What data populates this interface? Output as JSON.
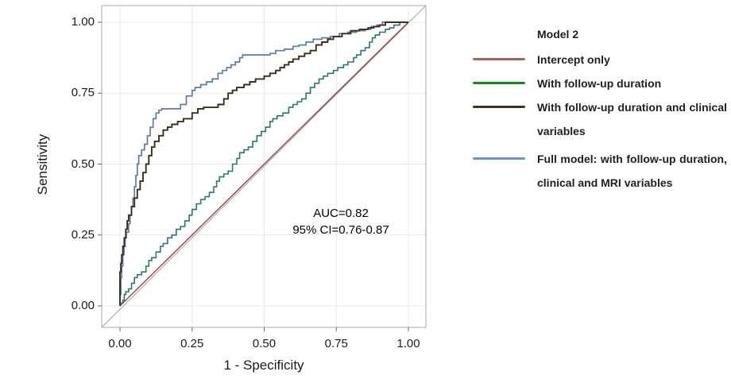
{
  "chart_data": {
    "type": "line",
    "subtype": "roc-curves",
    "title": "",
    "xlabel": "1 - Specificity",
    "ylabel": "Sensitivity",
    "xlim": [
      0,
      1
    ],
    "ylim": [
      0,
      1
    ],
    "grid": true,
    "xtick_labels": [
      "0.00",
      "0.25",
      "0.50",
      "0.75",
      "1.00"
    ],
    "ytick_labels": [
      "0.00",
      "0.25",
      "0.50",
      "0.75",
      "1.00"
    ],
    "annotation": {
      "line1": "AUC=0.82",
      "line2": "95% CI=0.76-0.87"
    },
    "diagonal_reference_color": "#9aa0a4",
    "frame_color": "#a8a8a8",
    "gridline_color": "#e9e9e9",
    "series": [
      {
        "id": "intercept-only",
        "name": "Intercept only",
        "color": "#9c3f38",
        "width": 1.4,
        "step": false,
        "points": [
          [
            0,
            0
          ],
          [
            1,
            1
          ]
        ]
      },
      {
        "id": "followup-duration",
        "name": "With follow-up duration",
        "color": "#27786f",
        "width": 1.6,
        "step": true,
        "points": [
          [
            0,
            0
          ],
          [
            0.01,
            0.01
          ],
          [
            0.015,
            0.02
          ],
          [
            0.02,
            0.04
          ],
          [
            0.03,
            0.05
          ],
          [
            0.04,
            0.06
          ],
          [
            0.05,
            0.08
          ],
          [
            0.06,
            0.1
          ],
          [
            0.075,
            0.11
          ],
          [
            0.09,
            0.12
          ],
          [
            0.1,
            0.14
          ],
          [
            0.11,
            0.16
          ],
          [
            0.125,
            0.17
          ],
          [
            0.14,
            0.19
          ],
          [
            0.15,
            0.21
          ],
          [
            0.165,
            0.22
          ],
          [
            0.18,
            0.24
          ],
          [
            0.195,
            0.25
          ],
          [
            0.21,
            0.27
          ],
          [
            0.225,
            0.28
          ],
          [
            0.24,
            0.3
          ],
          [
            0.25,
            0.32
          ],
          [
            0.265,
            0.34
          ],
          [
            0.28,
            0.36
          ],
          [
            0.295,
            0.375
          ],
          [
            0.31,
            0.385
          ],
          [
            0.325,
            0.4
          ],
          [
            0.335,
            0.42
          ],
          [
            0.345,
            0.44
          ],
          [
            0.36,
            0.455
          ],
          [
            0.375,
            0.465
          ],
          [
            0.39,
            0.475
          ],
          [
            0.405,
            0.5
          ],
          [
            0.415,
            0.52
          ],
          [
            0.43,
            0.54
          ],
          [
            0.445,
            0.55
          ],
          [
            0.46,
            0.56
          ],
          [
            0.475,
            0.58
          ],
          [
            0.49,
            0.6
          ],
          [
            0.505,
            0.615
          ],
          [
            0.52,
            0.63
          ],
          [
            0.53,
            0.65
          ],
          [
            0.545,
            0.66
          ],
          [
            0.565,
            0.67
          ],
          [
            0.585,
            0.68
          ],
          [
            0.6,
            0.7
          ],
          [
            0.615,
            0.71
          ],
          [
            0.63,
            0.72
          ],
          [
            0.645,
            0.73
          ],
          [
            0.66,
            0.75
          ],
          [
            0.675,
            0.77
          ],
          [
            0.69,
            0.785
          ],
          [
            0.705,
            0.8
          ],
          [
            0.72,
            0.81
          ],
          [
            0.74,
            0.82
          ],
          [
            0.755,
            0.83
          ],
          [
            0.775,
            0.84
          ],
          [
            0.79,
            0.85
          ],
          [
            0.81,
            0.86
          ],
          [
            0.82,
            0.875
          ],
          [
            0.835,
            0.885
          ],
          [
            0.85,
            0.9
          ],
          [
            0.865,
            0.91
          ],
          [
            0.875,
            0.93
          ],
          [
            0.885,
            0.945
          ],
          [
            0.9,
            0.955
          ],
          [
            0.92,
            0.965
          ],
          [
            0.935,
            0.975
          ],
          [
            0.95,
            0.98
          ],
          [
            0.97,
            0.99
          ],
          [
            1,
            1
          ]
        ]
      },
      {
        "id": "full-model",
        "name": "Full model: with follow-up duration, clinical and MRI variables",
        "color": "#5b7ab2",
        "width": 1.7,
        "step": true,
        "points": [
          [
            0,
            0
          ],
          [
            0.003,
            0.04
          ],
          [
            0.006,
            0.1
          ],
          [
            0.01,
            0.14
          ],
          [
            0.014,
            0.18
          ],
          [
            0.018,
            0.21
          ],
          [
            0.022,
            0.24
          ],
          [
            0.03,
            0.26
          ],
          [
            0.035,
            0.29
          ],
          [
            0.04,
            0.32
          ],
          [
            0.045,
            0.35
          ],
          [
            0.05,
            0.38
          ],
          [
            0.055,
            0.42
          ],
          [
            0.06,
            0.46
          ],
          [
            0.065,
            0.5
          ],
          [
            0.075,
            0.53
          ],
          [
            0.085,
            0.55
          ],
          [
            0.095,
            0.57
          ],
          [
            0.105,
            0.6
          ],
          [
            0.115,
            0.63
          ],
          [
            0.125,
            0.66
          ],
          [
            0.135,
            0.68
          ],
          [
            0.145,
            0.69
          ],
          [
            0.21,
            0.695
          ],
          [
            0.23,
            0.71
          ],
          [
            0.25,
            0.74
          ],
          [
            0.26,
            0.76
          ],
          [
            0.28,
            0.77
          ],
          [
            0.3,
            0.78
          ],
          [
            0.32,
            0.79
          ],
          [
            0.34,
            0.8
          ],
          [
            0.355,
            0.82
          ],
          [
            0.37,
            0.83
          ],
          [
            0.385,
            0.84
          ],
          [
            0.4,
            0.85
          ],
          [
            0.415,
            0.86
          ],
          [
            0.425,
            0.875
          ],
          [
            0.435,
            0.885
          ],
          [
            0.52,
            0.885
          ],
          [
            0.54,
            0.89
          ],
          [
            0.57,
            0.9
          ],
          [
            0.6,
            0.905
          ],
          [
            0.62,
            0.915
          ],
          [
            0.645,
            0.92
          ],
          [
            0.67,
            0.93
          ],
          [
            0.7,
            0.94
          ],
          [
            0.73,
            0.945
          ],
          [
            0.76,
            0.95
          ],
          [
            0.79,
            0.96
          ],
          [
            0.82,
            0.965
          ],
          [
            0.85,
            0.97
          ],
          [
            0.87,
            0.975
          ],
          [
            0.89,
            0.985
          ],
          [
            0.91,
            0.99
          ],
          [
            0.93,
            1.0
          ],
          [
            1,
            1
          ]
        ]
      },
      {
        "id": "clinical-variables",
        "name": "With follow-up duration and clinical variables",
        "color": "#3a2e1c",
        "width": 1.9,
        "step": true,
        "points": [
          [
            0,
            0
          ],
          [
            0.003,
            0.12
          ],
          [
            0.006,
            0.15
          ],
          [
            0.01,
            0.18
          ],
          [
            0.015,
            0.21
          ],
          [
            0.02,
            0.24
          ],
          [
            0.025,
            0.27
          ],
          [
            0.03,
            0.3
          ],
          [
            0.04,
            0.32
          ],
          [
            0.05,
            0.35
          ],
          [
            0.06,
            0.38
          ],
          [
            0.07,
            0.41
          ],
          [
            0.08,
            0.44
          ],
          [
            0.09,
            0.47
          ],
          [
            0.1,
            0.5
          ],
          [
            0.11,
            0.53
          ],
          [
            0.12,
            0.56
          ],
          [
            0.135,
            0.58
          ],
          [
            0.15,
            0.6
          ],
          [
            0.165,
            0.62
          ],
          [
            0.18,
            0.63
          ],
          [
            0.2,
            0.64
          ],
          [
            0.22,
            0.65
          ],
          [
            0.25,
            0.66
          ],
          [
            0.27,
            0.68
          ],
          [
            0.29,
            0.695
          ],
          [
            0.34,
            0.7
          ],
          [
            0.36,
            0.71
          ],
          [
            0.375,
            0.73
          ],
          [
            0.39,
            0.75
          ],
          [
            0.405,
            0.76
          ],
          [
            0.43,
            0.77
          ],
          [
            0.45,
            0.78
          ],
          [
            0.47,
            0.79
          ],
          [
            0.5,
            0.8
          ],
          [
            0.52,
            0.81
          ],
          [
            0.54,
            0.82
          ],
          [
            0.555,
            0.83
          ],
          [
            0.57,
            0.84
          ],
          [
            0.585,
            0.85
          ],
          [
            0.6,
            0.86
          ],
          [
            0.62,
            0.87
          ],
          [
            0.64,
            0.88
          ],
          [
            0.66,
            0.89
          ],
          [
            0.68,
            0.9
          ],
          [
            0.7,
            0.92
          ],
          [
            0.72,
            0.93
          ],
          [
            0.74,
            0.94
          ],
          [
            0.77,
            0.95
          ],
          [
            0.8,
            0.96
          ],
          [
            0.83,
            0.97
          ],
          [
            0.86,
            0.975
          ],
          [
            0.88,
            0.98
          ],
          [
            0.9,
            0.985
          ],
          [
            0.92,
            0.99
          ],
          [
            0.95,
            1.0
          ],
          [
            1,
            1
          ]
        ]
      }
    ]
  },
  "legend": {
    "title": "Model 2",
    "items": [
      {
        "id": "intercept-only",
        "label": "Intercept only",
        "color": "#ae605d"
      },
      {
        "id": "followup-duration",
        "label": "With follow-up duration",
        "color": "#1a8614"
      },
      {
        "id": "clinical-variables",
        "label": "With follow-up duration and clinical variables",
        "color": "#3e3322"
      },
      {
        "id": "full-model",
        "label": "Full model: with follow-up duration, clinical and MRI variables",
        "color": "#6e92c4"
      }
    ]
  }
}
